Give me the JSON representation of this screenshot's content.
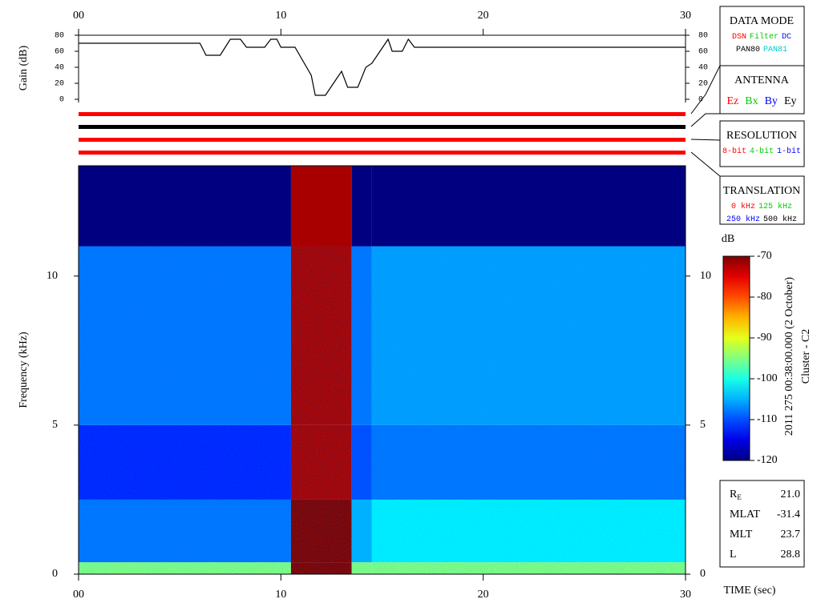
{
  "chart_data": [
    {
      "type": "line",
      "y_label": "Gain (dB)",
      "x": [
        0,
        6,
        6.3,
        7,
        7.5,
        8,
        8.3,
        9.2,
        9.5,
        9.8,
        10,
        10.7,
        11.5,
        11.7,
        12.2,
        12.6,
        13,
        13.3,
        13.8,
        14.2,
        14.5,
        14.9,
        15.3,
        15.5,
        16,
        16.3,
        16.6,
        30
      ],
      "values": [
        70,
        70,
        55,
        55,
        75,
        75,
        65,
        65,
        75,
        75,
        65,
        65,
        30,
        5,
        5,
        20,
        35,
        15,
        15,
        40,
        45,
        60,
        75,
        60,
        60,
        75,
        65,
        65
      ],
      "color": "#000000",
      "xlim": [
        0,
        30
      ],
      "ylim": [
        0,
        80
      ],
      "xticks": [
        {
          "value": 0,
          "label": "00"
        },
        10,
        20,
        30
      ],
      "yticks": [
        0,
        20,
        40,
        60,
        80
      ]
    },
    {
      "type": "heatmap",
      "y_label": "Frequency (kHz)",
      "x_label": "TIME (sec)",
      "x_edges": [
        0,
        10.5,
        13.5,
        14.5,
        30
      ],
      "y_edges": [
        0,
        0.4,
        2.5,
        5,
        11,
        13.7
      ],
      "z": [
        [
          -95,
          -70,
          -95,
          -95
        ],
        [
          -108,
          -70,
          -105,
          -102
        ],
        [
          -112,
          -72,
          -110,
          -108
        ],
        [
          -108,
          -72,
          -108,
          -106
        ],
        [
          -120,
          -72,
          -120,
          -120
        ]
      ],
      "xlim": [
        0,
        30
      ],
      "ylim": [
        0,
        13.7
      ],
      "xticks": [
        {
          "value": 0,
          "label": "00"
        },
        10,
        20,
        30
      ],
      "yticks": [
        0,
        5,
        10
      ],
      "colorbar": {
        "title": "dB",
        "zlim": [
          -120,
          -70
        ],
        "ticks": [
          -70,
          -80,
          -90,
          -100,
          -110,
          -120
        ]
      }
    }
  ],
  "timestamp": "2011 275 00:38:00.000 (2 October)",
  "spacecraft": "Cluster - C2",
  "panels": [
    {
      "title": "DATA MODE",
      "rows": [
        [
          {
            "text": "DSN",
            "color": "#ff0000"
          },
          {
            "text": "Filter",
            "color": "#00cc00"
          },
          {
            "text": "DC",
            "color": "#0000ff"
          }
        ],
        [
          {
            "text": "PAN80",
            "color": "#000000"
          },
          {
            "text": "PAN81",
            "color": "#00cccc"
          }
        ]
      ]
    },
    {
      "title": "ANTENNA",
      "rows": [
        [
          {
            "text": "Ez",
            "color": "#ff0000"
          },
          {
            "text": "Bx",
            "color": "#00cc00"
          },
          {
            "text": "By",
            "color": "#0000ff"
          },
          {
            "text": "Ey",
            "color": "#000000"
          }
        ]
      ]
    },
    {
      "title": "RESOLUTION",
      "rows": [
        [
          {
            "text": "8-bit",
            "color": "#ff0000"
          },
          {
            "text": "4-bit",
            "color": "#00cc00"
          },
          {
            "text": "1-bit",
            "color": "#0000ff"
          }
        ]
      ]
    },
    {
      "title": "TRANSLATION",
      "rows": [
        [
          {
            "text": "0 kHz",
            "color": "#ff0000"
          },
          {
            "text": "125 kHz",
            "color": "#00cc00"
          }
        ],
        [
          {
            "text": "250 kHz",
            "color": "#0000ff"
          },
          {
            "text": "500 kHz",
            "color": "#000000"
          }
        ]
      ]
    }
  ],
  "ephemeris": [
    {
      "label": "R",
      "subscript": "E",
      "value": "21.0"
    },
    {
      "label": "MLAT",
      "value": "-31.4"
    },
    {
      "label": "MLT",
      "value": "23.7"
    },
    {
      "label": "L",
      "value": "28.8"
    }
  ]
}
